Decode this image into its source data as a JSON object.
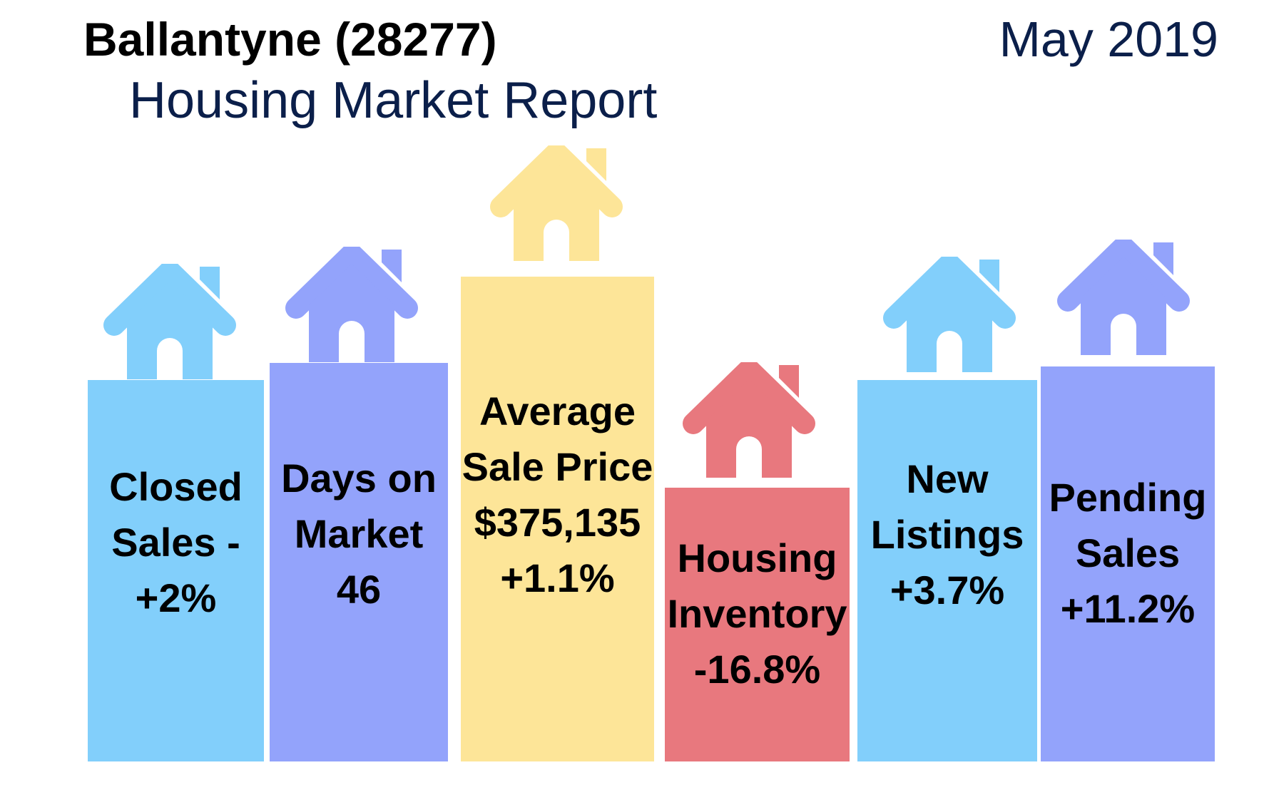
{
  "header": {
    "title": "Ballantyne (28277)",
    "subtitle": "Housing Market Report",
    "date": "May 2019"
  },
  "colors": {
    "blue": "#82cffb",
    "purple": "#93a3fb",
    "yellow": "#fde598",
    "red": "#e8787e"
  },
  "cards": [
    {
      "icon": "house-icon",
      "color": "#82cffb",
      "lines": [
        "Closed",
        "Sales -",
        "+2%"
      ]
    },
    {
      "icon": "house-icon",
      "color": "#93a3fb",
      "lines": [
        "Days on",
        "Market",
        "46"
      ]
    },
    {
      "icon": "house-icon",
      "color": "#fde598",
      "lines": [
        "Average",
        "Sale Price",
        "$375,135",
        "+1.1%"
      ]
    },
    {
      "icon": "house-icon",
      "color": "#e8787e",
      "lines": [
        "Housing",
        "Inventory",
        "-16.8%"
      ]
    },
    {
      "icon": "house-icon",
      "color": "#82cffb",
      "lines": [
        "New",
        "Listings",
        "+3.7%"
      ]
    },
    {
      "icon": "house-icon",
      "color": "#93a3fb",
      "lines": [
        "Pending",
        "Sales",
        "+11.2%"
      ]
    }
  ]
}
